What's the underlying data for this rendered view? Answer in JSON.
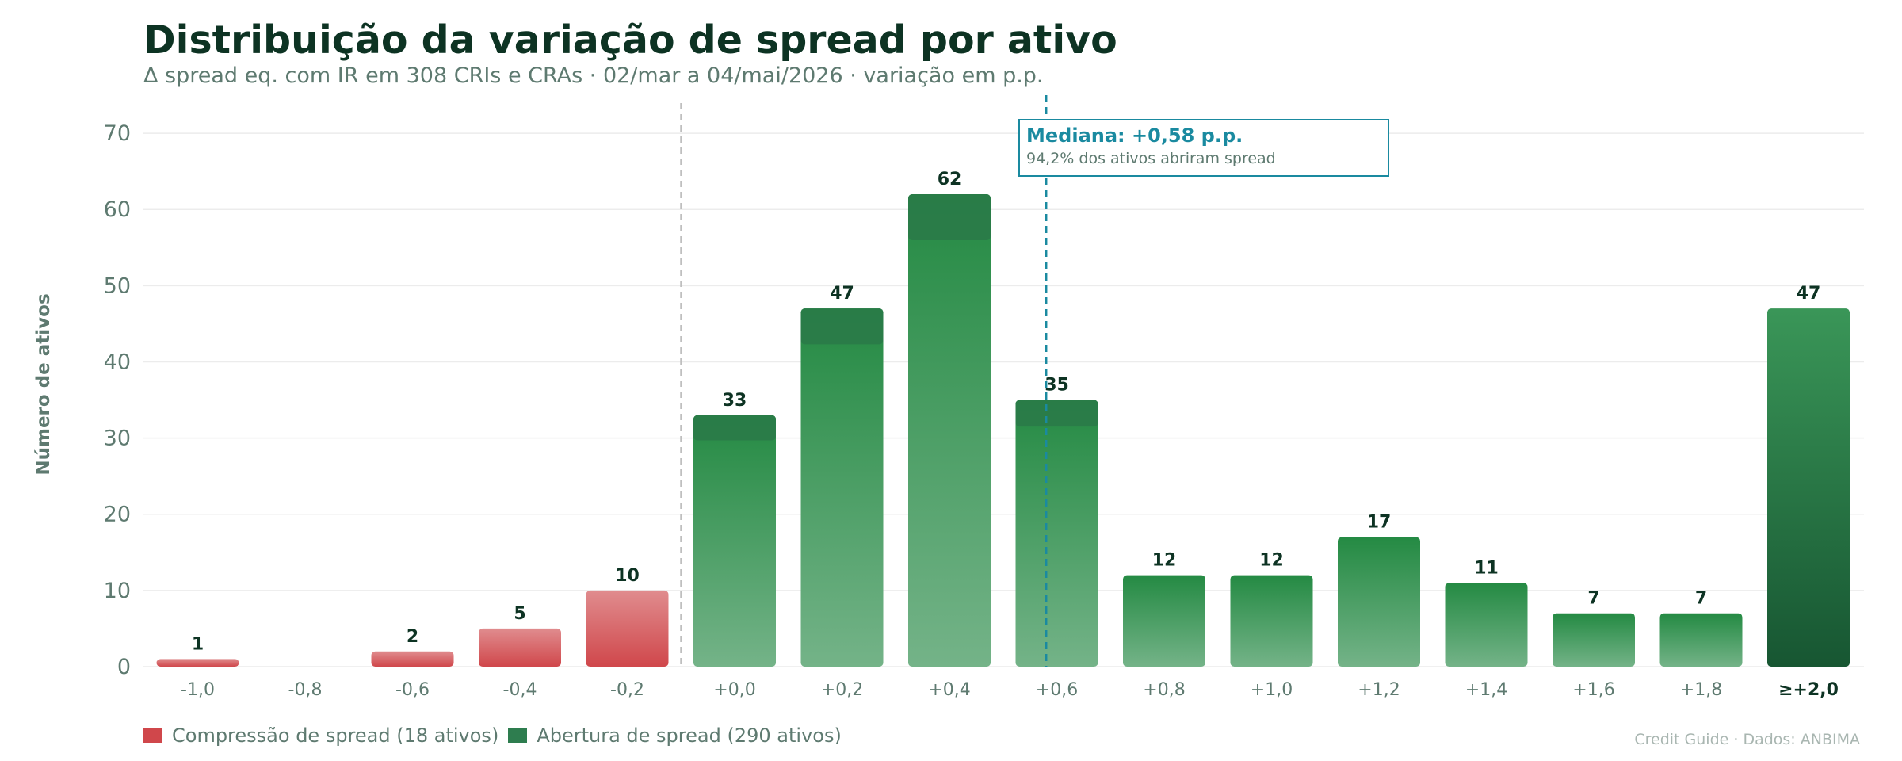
{
  "header": {
    "title": "Distribuição da variação de spread por ativo",
    "subtitle": "Δ spread eq. com IR em 308 CRIs e CRAs · 02/mar a 04/mai/2026 · variação em p.p."
  },
  "legend": [
    {
      "label": "Compressão de spread (18 ativos)",
      "color": "#d0474b"
    },
    {
      "label": "Abertura de spread (290 ativos)",
      "color": "#2e7d4f"
    }
  ],
  "credit": "Credit Guide · Dados: ANBIMA",
  "chart_data": {
    "type": "bar",
    "title": "Distribuição da variação de spread por ativo",
    "subtitle": "Δ spread eq. com IR em 308 CRIs e CRAs · 02/mar a 04/mai/2026 · variação em p.p.",
    "xlabel": "",
    "ylabel": "Número de ativos",
    "ylim": [
      0,
      75
    ],
    "yticks": [
      0,
      10,
      20,
      30,
      40,
      50,
      60,
      70
    ],
    "grid": true,
    "categories": [
      "-1,0",
      "-0,8",
      "-0,6",
      "-0,4",
      "-0,2",
      "+0,0",
      "+0,2",
      "+0,4",
      "+0,6",
      "+0,8",
      "+1,0",
      "+1,2",
      "+1,4",
      "+1,6",
      "+1,8",
      "≥+2,0"
    ],
    "values": [
      1,
      0,
      2,
      5,
      10,
      33,
      47,
      62,
      35,
      12,
      12,
      17,
      11,
      7,
      7,
      47
    ],
    "labels": [
      "1",
      "",
      "2",
      "5",
      "10",
      "33",
      "47",
      "62",
      "35",
      "12",
      "12",
      "17",
      "11",
      "7",
      "7",
      "47"
    ],
    "groups": [
      "compressao",
      "compressao",
      "compressao",
      "compressao",
      "compressao",
      "abertura",
      "abertura",
      "abertura",
      "abertura",
      "abertura",
      "abertura",
      "abertura",
      "abertura",
      "abertura",
      "abertura",
      "abertura"
    ],
    "colors": {
      "compressao": "#d0474b",
      "abertura": "#2e8b4a",
      "overflow": "#1a5c35",
      "median": "#1a8aa0"
    },
    "zero_line_x": -0.1,
    "median": {
      "x": 0.58,
      "label": "Mediana: +0,58 p.p.",
      "note": "94,2% dos ativos abriram spread"
    },
    "legend_position": "bottom-left"
  }
}
